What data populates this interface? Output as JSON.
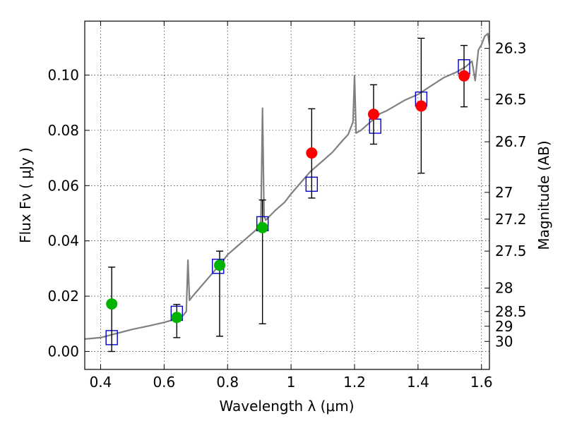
{
  "chart_data": {
    "type": "scatter",
    "xlabel": "Wavelength  λ (μm)",
    "ylabel": "Flux  Fν  ( μJy )",
    "y2label": "Magnitude (AB)",
    "xlim": [
      0.35,
      1.625
    ],
    "ylim": [
      -0.0065,
      0.1195
    ],
    "grid": true,
    "x_ticks": [
      {
        "value": 0.4,
        "label": "0.4"
      },
      {
        "value": 0.6,
        "label": "0.6"
      },
      {
        "value": 0.8,
        "label": "0.8"
      },
      {
        "value": 1.0,
        "label": "1"
      },
      {
        "value": 1.2,
        "label": "1.2"
      },
      {
        "value": 1.4,
        "label": "1.4"
      },
      {
        "value": 1.6,
        "label": "1.6"
      }
    ],
    "y_ticks": [
      {
        "value": 0.0,
        "label": "0.00"
      },
      {
        "value": 0.02,
        "label": "0.02"
      },
      {
        "value": 0.04,
        "label": "0.04"
      },
      {
        "value": 0.06,
        "label": "0.06"
      },
      {
        "value": 0.08,
        "label": "0.08"
      },
      {
        "value": 0.1,
        "label": "0.10"
      }
    ],
    "y2_ticks": [
      {
        "value": 26.3,
        "label": "26.3"
      },
      {
        "value": 26.5,
        "label": "26.5"
      },
      {
        "value": 26.7,
        "label": "26.7"
      },
      {
        "value": 27.0,
        "label": "27"
      },
      {
        "value": 27.2,
        "label": "27.2"
      },
      {
        "value": 27.5,
        "label": "27.5"
      },
      {
        "value": 28.0,
        "label": "28"
      },
      {
        "value": 28.5,
        "label": "28.5"
      },
      {
        "value": 29.0,
        "label": "29"
      },
      {
        "value": 30.0,
        "label": "30"
      }
    ],
    "series": [
      {
        "marker": "line",
        "color": "#808080",
        "x": [
          0.35,
          0.4,
          0.45,
          0.5,
          0.55,
          0.6,
          0.64,
          0.66,
          0.67,
          0.675,
          0.68,
          0.69,
          0.72,
          0.75,
          0.78,
          0.8,
          0.83,
          0.86,
          0.89,
          0.905,
          0.91,
          0.915,
          0.92,
          0.95,
          0.98,
          1.0,
          1.03,
          1.06,
          1.1,
          1.13,
          1.16,
          1.18,
          1.195,
          1.2,
          1.205,
          1.22,
          1.25,
          1.28,
          1.3,
          1.33,
          1.36,
          1.4,
          1.44,
          1.48,
          1.52,
          1.55,
          1.57,
          1.58,
          1.59,
          1.6,
          1.61,
          1.62,
          1.625
        ],
        "y": [
          0.0045,
          0.005,
          0.0065,
          0.008,
          0.0092,
          0.0105,
          0.0118,
          0.013,
          0.0145,
          0.033,
          0.0185,
          0.02,
          0.024,
          0.028,
          0.032,
          0.035,
          0.038,
          0.041,
          0.044,
          0.047,
          0.088,
          0.049,
          0.0475,
          0.051,
          0.054,
          0.057,
          0.061,
          0.065,
          0.069,
          0.072,
          0.076,
          0.0785,
          0.083,
          0.0998,
          0.079,
          0.08,
          0.083,
          0.086,
          0.087,
          0.089,
          0.091,
          0.093,
          0.096,
          0.099,
          0.101,
          0.103,
          0.105,
          0.098,
          0.109,
          0.111,
          0.114,
          0.115,
          0.111
        ]
      },
      {
        "marker": "open-square",
        "color": "#0000cc",
        "x": [
          0.435,
          0.64,
          0.77,
          0.91,
          1.065,
          1.265,
          1.41,
          1.545
        ],
        "y": [
          0.005,
          0.0138,
          0.0308,
          0.0462,
          0.0605,
          0.0815,
          0.0913,
          0.103
        ]
      },
      {
        "marker": "filled-circle",
        "color": "#00b400",
        "x": [
          0.435,
          0.64,
          0.775,
          0.91
        ],
        "y": [
          0.0172,
          0.0123,
          0.0312,
          0.0448
        ],
        "yerr_low": [
          0.0,
          0.005,
          0.0055,
          0.01
        ],
        "yerr_high": [
          0.0305,
          0.017,
          0.0363,
          0.0548
        ]
      },
      {
        "marker": "filled-circle",
        "color": "#ff0000",
        "x": [
          1.065,
          1.26,
          1.41,
          1.545
        ],
        "y": [
          0.0718,
          0.0858,
          0.0888,
          0.0997
        ],
        "yerr_low": [
          0.0555,
          0.075,
          0.0645,
          0.0885
        ],
        "yerr_high": [
          0.0878,
          0.0965,
          0.1133,
          0.1107
        ]
      }
    ]
  }
}
